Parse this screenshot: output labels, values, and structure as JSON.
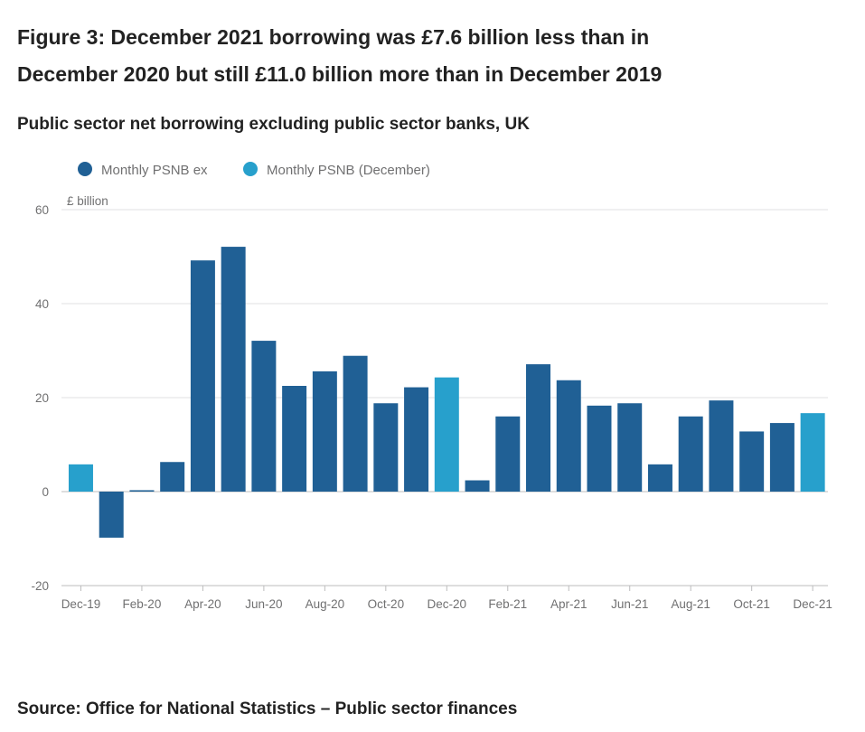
{
  "chart_data": {
    "type": "bar",
    "title_lines": [
      "Figure 3: December 2021 borrowing was £7.6 billion less than in",
      "December 2020 but still £11.0 billion more than in December 2019"
    ],
    "subtitle": "Public sector net borrowing excluding public sector banks, UK",
    "y_label": "£ billion",
    "source": "Source: Office for National Statistics – Public sector finances",
    "categories": [
      "Dec-19",
      null,
      "Feb-20",
      null,
      "Apr-20",
      null,
      "Jun-20",
      null,
      "Aug-20",
      null,
      "Oct-20",
      null,
      "Dec-20",
      null,
      "Feb-21",
      null,
      "Apr-21",
      null,
      "Jun-21",
      null,
      "Aug-21",
      null,
      "Oct-21",
      null,
      "Dec-21"
    ],
    "series": [
      {
        "name": "Monthly PSNB ex",
        "color": "#206095",
        "values": [
          null,
          -9.8,
          0.3,
          6.3,
          49.2,
          52.1,
          32.1,
          22.5,
          25.6,
          28.9,
          18.8,
          22.2,
          null,
          2.4,
          16.0,
          27.1,
          23.7,
          18.3,
          18.8,
          5.8,
          16.0,
          19.4,
          12.8,
          14.6,
          null
        ]
      },
      {
        "name": "Monthly PSNB (December)",
        "color": "#27a0cc",
        "values": [
          5.8,
          null,
          null,
          null,
          null,
          null,
          null,
          null,
          null,
          null,
          null,
          null,
          24.3,
          null,
          null,
          null,
          null,
          null,
          null,
          null,
          null,
          null,
          null,
          null,
          16.7
        ]
      }
    ],
    "ylim": [
      -20,
      60
    ],
    "yticks": [
      -20,
      0,
      20,
      40,
      60
    ],
    "grid": true
  }
}
